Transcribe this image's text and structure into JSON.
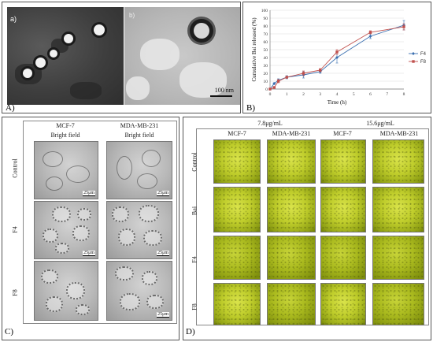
{
  "panelA": {
    "label": "A)",
    "image1_letter": "a)",
    "image2_letter": "b)",
    "scale": "100 nm"
  },
  "panelB": {
    "label": "B)"
  },
  "chart_data": {
    "type": "line",
    "x": [
      0,
      0.25,
      0.5,
      1,
      2,
      3,
      4,
      6,
      8
    ],
    "series": [
      {
        "name": "F4",
        "color": "#3a6fb0",
        "values": [
          0,
          7,
          11,
          15,
          18,
          22,
          40,
          67,
          81
        ],
        "errors": [
          0,
          1,
          2,
          2,
          4,
          2,
          7,
          3,
          6
        ]
      },
      {
        "name": "F8",
        "color": "#c0504d",
        "values": [
          0,
          2,
          10,
          15,
          20,
          24,
          47,
          72,
          79
        ],
        "errors": [
          0,
          1,
          2,
          1,
          3,
          2,
          3,
          2,
          4
        ]
      }
    ],
    "xlabel": "Time (h)",
    "ylabel": "Cumulative Bai released (%)",
    "xlim": [
      0,
      8
    ],
    "ylim": [
      0,
      100
    ],
    "xticks": [
      0,
      1,
      2,
      3,
      4,
      5,
      6,
      7,
      8
    ],
    "yticks": [
      0,
      10,
      20,
      30,
      40,
      50,
      60,
      70,
      80,
      90,
      100
    ],
    "grid": true,
    "legend": "right"
  },
  "panelC": {
    "label": "C)",
    "columns": [
      "MCF-7",
      "MDA-MB-231"
    ],
    "subheader": "Bright field",
    "rows": [
      "Control",
      "F4",
      "F8"
    ],
    "scale": "25μm"
  },
  "panelD": {
    "label": "D)",
    "groups": [
      "7.8μg/mL",
      "15.6μg/mL"
    ],
    "columns": [
      "MCF-7",
      "MDA-MB-231",
      "MCF-7",
      "MDA-MB-231"
    ],
    "rows": [
      "Control",
      "Bai",
      "F4",
      "F8"
    ]
  }
}
